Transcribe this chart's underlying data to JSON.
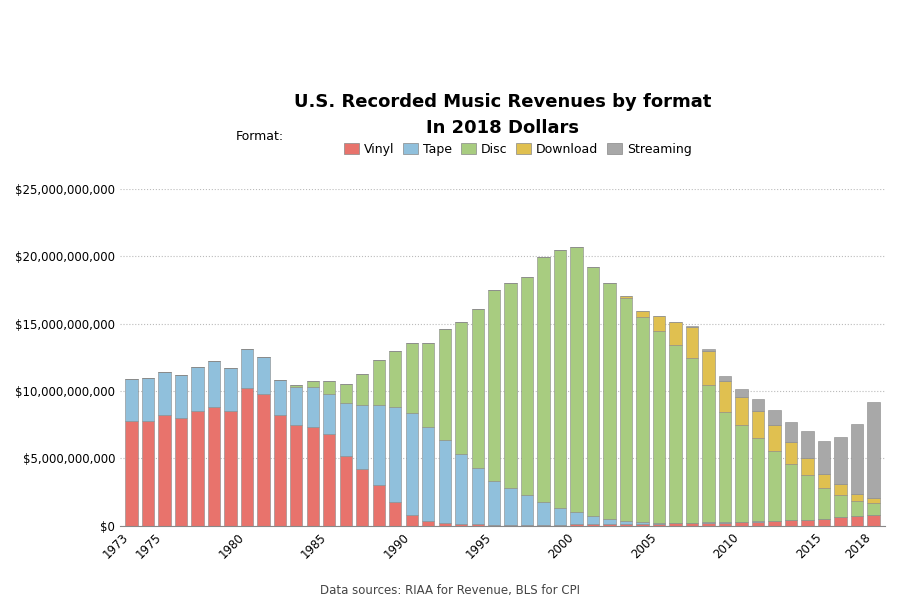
{
  "title": "U.S. Recorded Music Revenues by format",
  "subtitle": "In 2018 Dollars",
  "source": "Data sources: RIAA for Revenue, BLS for CPI",
  "years": [
    1973,
    1974,
    1975,
    1976,
    1977,
    1978,
    1979,
    1980,
    1981,
    1982,
    1983,
    1984,
    1985,
    1986,
    1987,
    1988,
    1989,
    1990,
    1991,
    1992,
    1993,
    1994,
    1995,
    1996,
    1997,
    1998,
    1999,
    2000,
    2001,
    2002,
    2003,
    2004,
    2005,
    2006,
    2007,
    2008,
    2009,
    2010,
    2011,
    2012,
    2013,
    2014,
    2015,
    2016,
    2017,
    2018
  ],
  "vinyl": [
    7800000000,
    7800000000,
    8200000000,
    8000000000,
    8500000000,
    8800000000,
    8500000000,
    10200000000,
    9800000000,
    8200000000,
    7500000000,
    7300000000,
    6800000000,
    5200000000,
    4200000000,
    3000000000,
    1800000000,
    800000000,
    350000000,
    180000000,
    140000000,
    110000000,
    95000000,
    85000000,
    75000000,
    75000000,
    90000000,
    100000000,
    110000000,
    115000000,
    120000000,
    145000000,
    165000000,
    185000000,
    200000000,
    240000000,
    245000000,
    280000000,
    320000000,
    370000000,
    400000000,
    460000000,
    530000000,
    620000000,
    710000000,
    770000000
  ],
  "tape": [
    3100000000,
    3200000000,
    3200000000,
    3200000000,
    3300000000,
    3400000000,
    3200000000,
    2900000000,
    2700000000,
    2600000000,
    2800000000,
    3000000000,
    3000000000,
    3900000000,
    4800000000,
    6000000000,
    7000000000,
    7600000000,
    7000000000,
    6200000000,
    5200000000,
    4200000000,
    3200000000,
    2700000000,
    2200000000,
    1700000000,
    1200000000,
    900000000,
    600000000,
    380000000,
    220000000,
    140000000,
    80000000,
    55000000,
    35000000,
    20000000,
    15000000,
    8000000,
    4000000,
    2000000,
    1500000,
    1000000,
    400000,
    200000,
    100000,
    50000
  ],
  "disc": [
    0,
    0,
    0,
    0,
    0,
    0,
    0,
    0,
    0,
    40000000,
    180000000,
    450000000,
    950000000,
    1400000000,
    2300000000,
    3300000000,
    4200000000,
    5200000000,
    6200000000,
    8200000000,
    9800000000,
    11800000000,
    14200000000,
    15200000000,
    16200000000,
    18200000000,
    19200000000,
    19700000000,
    18500000000,
    17500000000,
    16600000000,
    15200000000,
    14200000000,
    13200000000,
    12200000000,
    10200000000,
    8200000000,
    7200000000,
    6200000000,
    5200000000,
    4200000000,
    3300000000,
    2300000000,
    1700000000,
    1100000000,
    900000000
  ],
  "download": [
    0,
    0,
    0,
    0,
    0,
    0,
    0,
    0,
    0,
    0,
    0,
    0,
    0,
    0,
    0,
    0,
    0,
    0,
    0,
    0,
    0,
    0,
    0,
    0,
    0,
    0,
    0,
    0,
    0,
    0,
    80000000,
    430000000,
    1100000000,
    1700000000,
    2300000000,
    2500000000,
    2300000000,
    2100000000,
    2000000000,
    1900000000,
    1600000000,
    1300000000,
    1000000000,
    750000000,
    550000000,
    400000000
  ],
  "streaming": [
    0,
    0,
    0,
    0,
    0,
    0,
    0,
    0,
    0,
    0,
    0,
    0,
    0,
    0,
    0,
    0,
    0,
    0,
    0,
    0,
    0,
    0,
    0,
    0,
    0,
    0,
    0,
    0,
    0,
    0,
    0,
    0,
    0,
    0,
    80000000,
    170000000,
    350000000,
    600000000,
    900000000,
    1150000000,
    1500000000,
    1950000000,
    2500000000,
    3500000000,
    5200000000,
    7100000000
  ],
  "colors": {
    "vinyl": "#E8736C",
    "tape": "#90C0DC",
    "disc": "#A8CC80",
    "download": "#E0C050",
    "streaming": "#A8A8A8"
  },
  "edge_color": "#888888",
  "ylim": [
    0,
    25000000000
  ],
  "yticks": [
    0,
    5000000000,
    10000000000,
    15000000000,
    20000000000,
    25000000000
  ],
  "xtick_years": [
    1973,
    1975,
    1980,
    1985,
    1990,
    1995,
    2000,
    2005,
    2010,
    2015,
    2018
  ],
  "background_color": "#FFFFFF",
  "grid_color": "#BBBBBB"
}
